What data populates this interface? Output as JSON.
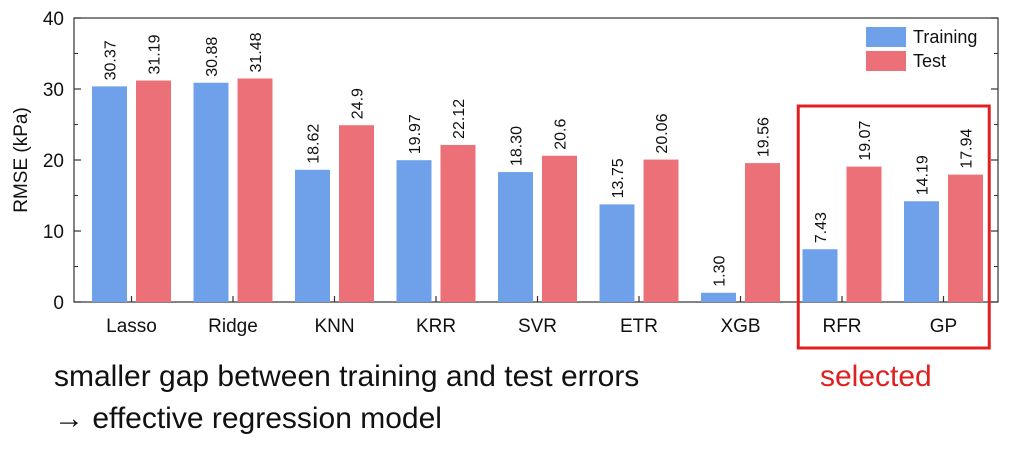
{
  "chart_data": {
    "type": "bar",
    "categories": [
      "Lasso",
      "Ridge",
      "KNN",
      "KRR",
      "SVR",
      "ETR",
      "XGB",
      "RFR",
      "GP"
    ],
    "series": [
      {
        "name": "Training",
        "values": [
          30.37,
          30.88,
          18.62,
          19.97,
          18.3,
          13.75,
          1.3,
          7.43,
          14.19
        ],
        "labels": [
          "30.37",
          "30.88",
          "18.62",
          "19.97",
          "18.30",
          "13.75",
          "1.30",
          "7.43",
          "14.19"
        ],
        "color": "#6fa0ea"
      },
      {
        "name": "Test",
        "values": [
          31.19,
          31.48,
          24.9,
          22.12,
          20.6,
          20.06,
          19.56,
          19.07,
          17.94
        ],
        "labels": [
          "31.19",
          "31.48",
          "24.9",
          "22.12",
          "20.6",
          "20.06",
          "19.56",
          "19.07",
          "17.94"
        ],
        "color": "#ec7078"
      }
    ],
    "title": "",
    "xlabel": "",
    "ylabel": "RMSE (kPa)",
    "ylim": [
      0,
      40
    ],
    "yticks": [
      0,
      10,
      20,
      30,
      40
    ],
    "grid": false,
    "legend": "top-right"
  },
  "annotations": {
    "selected_label": "selected",
    "selected_color": "#e02020",
    "selected_categories": [
      "RFR",
      "GP"
    ]
  },
  "caption": {
    "line1": "smaller gap between training and test errors",
    "line2": "→ effective regression model"
  }
}
